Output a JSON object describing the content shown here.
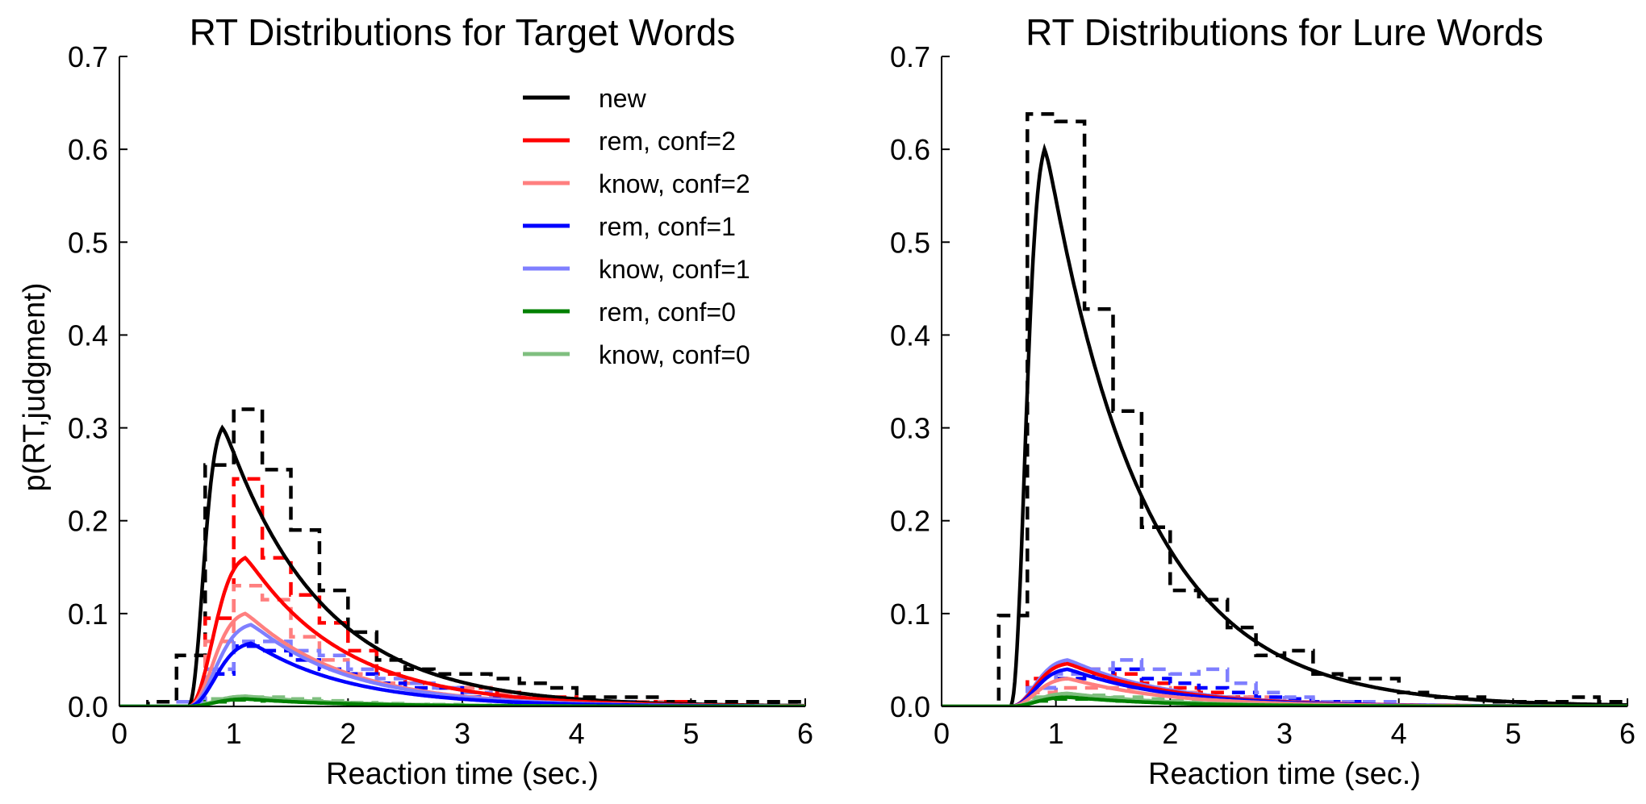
{
  "chart_data": [
    {
      "type": "line",
      "title": "RT Distributions for Target Words",
      "xlabel": "Reaction time (sec.)",
      "ylabel": "p(RT,judgment)",
      "xlim": [
        0,
        6
      ],
      "ylim": [
        0,
        0.7
      ],
      "xticks": [
        "0",
        "1",
        "2",
        "3",
        "4",
        "5",
        "6"
      ],
      "yticks": [
        "0.0",
        "0.1",
        "0.2",
        "0.3",
        "0.4",
        "0.5",
        "0.6",
        "0.7"
      ],
      "grid": false,
      "legend": "top-right",
      "legend_entries": [
        {
          "label": "new",
          "color": "#000000"
        },
        {
          "label": "rem, conf=2",
          "color": "#ff0000"
        },
        {
          "label": "know, conf=2",
          "color": "#ff7f7f"
        },
        {
          "label": "rem, conf=1",
          "color": "#0000ff"
        },
        {
          "label": "know, conf=1",
          "color": "#7f7fff"
        },
        {
          "label": "rem, conf=0",
          "color": "#008000"
        },
        {
          "label": "know, conf=0",
          "color": "#7fbf7f"
        }
      ],
      "model_series": [
        {
          "color": "#000000",
          "peak_x": 0.9,
          "peak_y": 0.3
        },
        {
          "color": "#ff0000",
          "peak_x": 1.1,
          "peak_y": 0.16
        },
        {
          "color": "#ff7f7f",
          "peak_x": 1.1,
          "peak_y": 0.1
        },
        {
          "color": "#7f7fff",
          "peak_x": 1.15,
          "peak_y": 0.088
        },
        {
          "color": "#0000ff",
          "peak_x": 1.15,
          "peak_y": 0.068
        },
        {
          "color": "#7fbf7f",
          "peak_x": 1.1,
          "peak_y": 0.011
        },
        {
          "color": "#008000",
          "peak_x": 1.1,
          "peak_y": 0.008
        }
      ],
      "observed_series": [
        {
          "color": "#000000",
          "bin_edges": [
            0,
            0.25,
            0.5,
            0.75,
            1,
            1.25,
            1.5,
            1.75,
            2,
            2.25,
            2.5,
            2.75,
            3,
            3.25,
            3.5,
            3.75,
            4,
            4.25,
            4.5,
            4.75,
            5,
            5.25,
            5.5,
            5.75,
            6
          ],
          "values": [
            0.0,
            0.005,
            0.055,
            0.26,
            0.32,
            0.255,
            0.19,
            0.125,
            0.08,
            0.05,
            0.04,
            0.035,
            0.035,
            0.03,
            0.025,
            0.02,
            0.01,
            0.01,
            0.01,
            0.005,
            0.005,
            0.005,
            0.005,
            0.005
          ]
        },
        {
          "color": "#ff0000",
          "bin_edges": [
            0.5,
            0.75,
            1,
            1.25,
            1.5,
            1.75,
            2,
            2.25,
            2.5,
            2.75,
            3,
            3.25,
            3.5,
            3.75,
            4,
            4.25,
            4.5,
            4.75,
            5,
            5.25,
            5.5,
            5.75,
            6
          ],
          "values": [
            0.005,
            0.095,
            0.245,
            0.16,
            0.12,
            0.09,
            0.06,
            0.035,
            0.025,
            0.02,
            0.02,
            0.015,
            0.01,
            0.01,
            0.005,
            0.005,
            0.005,
            0.005,
            0.0,
            0.0,
            0.0,
            0.0
          ]
        },
        {
          "color": "#ff7f7f",
          "bin_edges": [
            0.5,
            0.75,
            1,
            1.25,
            1.5,
            1.75,
            2,
            2.25,
            2.5,
            2.75,
            3,
            3.25,
            3.5,
            3.75,
            4,
            4.25,
            4.5,
            4.75,
            5,
            5.25,
            5.5,
            5.75,
            6
          ],
          "values": [
            0.005,
            0.07,
            0.13,
            0.115,
            0.075,
            0.05,
            0.035,
            0.025,
            0.025,
            0.02,
            0.02,
            0.015,
            0.01,
            0.005,
            0.005,
            0.005,
            0.005,
            0.0,
            0.0,
            0.0,
            0.0,
            0.0
          ]
        },
        {
          "color": "#0000ff",
          "bin_edges": [
            0.5,
            0.75,
            1,
            1.25,
            1.5,
            1.75,
            2,
            2.25,
            2.5,
            2.75,
            3,
            3.25,
            3.5,
            3.75,
            4,
            4.25,
            4.5,
            4.75,
            5,
            5.25,
            5.5,
            5.75,
            6
          ],
          "values": [
            0.005,
            0.035,
            0.065,
            0.06,
            0.05,
            0.04,
            0.035,
            0.025,
            0.02,
            0.02,
            0.01,
            0.01,
            0.005,
            0.005,
            0.005,
            0.005,
            0.0,
            0.0,
            0.0,
            0.0,
            0.0,
            0.0
          ]
        },
        {
          "color": "#7f7fff",
          "bin_edges": [
            0.5,
            0.75,
            1,
            1.25,
            1.5,
            1.75,
            2,
            2.25,
            2.5,
            2.75,
            3,
            3.25,
            3.5,
            3.75,
            4,
            4.25,
            4.5,
            4.75,
            5,
            5.25,
            5.5,
            5.75,
            6
          ],
          "values": [
            0.005,
            0.04,
            0.07,
            0.07,
            0.06,
            0.055,
            0.04,
            0.03,
            0.025,
            0.02,
            0.015,
            0.01,
            0.005,
            0.005,
            0.005,
            0.005,
            0.0,
            0.0,
            0.0,
            0.0,
            0.0,
            0.0
          ]
        },
        {
          "color": "#008000",
          "bin_edges": [
            0.5,
            0.75,
            1,
            1.25,
            1.5,
            1.75,
            2,
            2.25,
            2.5,
            2.75,
            3,
            3.25,
            3.5,
            3.75,
            4,
            4.25,
            4.5,
            4.75,
            5,
            5.25,
            5.5,
            5.75,
            6
          ],
          "values": [
            0.0,
            0.005,
            0.007,
            0.006,
            0.005,
            0.004,
            0.003,
            0.002,
            0.002,
            0.001,
            0.001,
            0.001,
            0.001,
            0.0,
            0.0,
            0.0,
            0.0,
            0.0,
            0.0,
            0.0,
            0.0,
            0.0
          ]
        },
        {
          "color": "#7fbf7f",
          "bin_edges": [
            0.5,
            0.75,
            1,
            1.25,
            1.5,
            1.75,
            2,
            2.25,
            2.5,
            2.75,
            3,
            3.25,
            3.5,
            3.75,
            4,
            4.25,
            4.5,
            4.75,
            5,
            5.25,
            5.5,
            5.75,
            6
          ],
          "values": [
            0.0,
            0.008,
            0.01,
            0.01,
            0.008,
            0.006,
            0.004,
            0.003,
            0.002,
            0.002,
            0.001,
            0.001,
            0.001,
            0.0,
            0.0,
            0.0,
            0.0,
            0.0,
            0.0,
            0.0,
            0.0,
            0.0
          ]
        }
      ]
    },
    {
      "type": "line",
      "title": "RT Distributions for Lure Words",
      "xlabel": "Reaction time (sec.)",
      "ylabel": "",
      "xlim": [
        0,
        6
      ],
      "ylim": [
        0,
        0.7
      ],
      "xticks": [
        "0",
        "1",
        "2",
        "3",
        "4",
        "5",
        "6"
      ],
      "yticks": [
        "0.0",
        "0.1",
        "0.2",
        "0.3",
        "0.4",
        "0.5",
        "0.6",
        "0.7"
      ],
      "grid": false,
      "model_series": [
        {
          "color": "#000000",
          "peak_x": 0.9,
          "peak_y": 0.6
        },
        {
          "color": "#7f7fff",
          "peak_x": 1.1,
          "peak_y": 0.05
        },
        {
          "color": "#ff0000",
          "peak_x": 1.1,
          "peak_y": 0.046
        },
        {
          "color": "#0000ff",
          "peak_x": 1.1,
          "peak_y": 0.04
        },
        {
          "color": "#ff7f7f",
          "peak_x": 1.1,
          "peak_y": 0.03
        },
        {
          "color": "#7fbf7f",
          "peak_x": 1.1,
          "peak_y": 0.014
        },
        {
          "color": "#008000",
          "peak_x": 1.1,
          "peak_y": 0.01
        }
      ],
      "observed_series": [
        {
          "color": "#000000",
          "bin_edges": [
            0,
            0.25,
            0.5,
            0.75,
            1,
            1.25,
            1.5,
            1.75,
            2,
            2.25,
            2.5,
            2.75,
            3,
            3.25,
            3.5,
            3.75,
            4,
            4.25,
            4.5,
            4.75,
            5,
            5.25,
            5.5,
            5.75,
            6
          ],
          "values": [
            0.0,
            0.0,
            0.098,
            0.638,
            0.63,
            0.428,
            0.318,
            0.193,
            0.125,
            0.115,
            0.085,
            0.055,
            0.06,
            0.035,
            0.03,
            0.03,
            0.015,
            0.01,
            0.01,
            0.005,
            0.005,
            0.005,
            0.01,
            0.005
          ]
        },
        {
          "color": "#ff0000",
          "bin_edges": [
            0.5,
            0.75,
            1,
            1.25,
            1.5,
            1.75,
            2,
            2.25,
            2.5,
            2.75,
            3,
            3.25,
            3.5,
            3.75,
            4,
            4.25,
            4.5,
            4.75,
            5,
            5.25,
            5.5,
            5.75,
            6
          ],
          "values": [
            0.0,
            0.03,
            0.035,
            0.04,
            0.035,
            0.025,
            0.02,
            0.015,
            0.01,
            0.005,
            0.005,
            0.005,
            0.005,
            0.0,
            0.0,
            0.0,
            0.0,
            0.0,
            0.0,
            0.0,
            0.0,
            0.0
          ]
        },
        {
          "color": "#ff7f7f",
          "bin_edges": [
            0.5,
            0.75,
            1,
            1.25,
            1.5,
            1.75,
            2,
            2.25,
            2.5,
            2.75,
            3,
            3.25,
            3.5,
            3.75,
            4,
            4.25,
            4.5,
            4.75,
            5,
            5.25,
            5.5,
            5.75,
            6
          ],
          "values": [
            0.0,
            0.015,
            0.02,
            0.02,
            0.02,
            0.02,
            0.015,
            0.01,
            0.01,
            0.01,
            0.005,
            0.005,
            0.005,
            0.0,
            0.0,
            0.0,
            0.0,
            0.0,
            0.0,
            0.0,
            0.0,
            0.0
          ]
        },
        {
          "color": "#0000ff",
          "bin_edges": [
            0.5,
            0.75,
            1,
            1.25,
            1.5,
            1.75,
            2,
            2.25,
            2.5,
            2.75,
            3,
            3.25,
            3.5,
            3.75,
            4,
            4.25,
            4.5,
            4.75,
            5,
            5.25,
            5.5,
            5.75,
            6
          ],
          "values": [
            0.0,
            0.02,
            0.03,
            0.035,
            0.04,
            0.03,
            0.025,
            0.02,
            0.015,
            0.01,
            0.008,
            0.005,
            0.005,
            0.0,
            0.0,
            0.0,
            0.0,
            0.0,
            0.0,
            0.0,
            0.0,
            0.0
          ]
        },
        {
          "color": "#7f7fff",
          "bin_edges": [
            0.5,
            0.75,
            1,
            1.25,
            1.5,
            1.75,
            2,
            2.25,
            2.5,
            2.75,
            3,
            3.25,
            3.5,
            3.75,
            4,
            4.25,
            4.5,
            4.75,
            5,
            5.25,
            5.5,
            5.75,
            6
          ],
          "values": [
            0.0,
            0.02,
            0.035,
            0.04,
            0.05,
            0.04,
            0.035,
            0.04,
            0.025,
            0.015,
            0.01,
            0.005,
            0.005,
            0.005,
            0.0,
            0.0,
            0.0,
            0.0,
            0.0,
            0.0,
            0.0,
            0.0
          ]
        },
        {
          "color": "#008000",
          "bin_edges": [
            0.5,
            0.75,
            1,
            1.25,
            1.5,
            1.75,
            2,
            2.25,
            2.5,
            2.75,
            3,
            3.25,
            3.5,
            3.75,
            4,
            4.25,
            4.5,
            4.75,
            5,
            5.25,
            5.5,
            5.75,
            6
          ],
          "values": [
            0.0,
            0.006,
            0.008,
            0.008,
            0.006,
            0.005,
            0.004,
            0.003,
            0.002,
            0.001,
            0.001,
            0.001,
            0.0,
            0.0,
            0.0,
            0.0,
            0.0,
            0.0,
            0.0,
            0.0,
            0.0,
            0.0
          ]
        },
        {
          "color": "#7fbf7f",
          "bin_edges": [
            0.5,
            0.75,
            1,
            1.25,
            1.5,
            1.75,
            2,
            2.25,
            2.5,
            2.75,
            3,
            3.25,
            3.5,
            3.75,
            4,
            4.25,
            4.5,
            4.75,
            5,
            5.25,
            5.5,
            5.75,
            6
          ],
          "values": [
            0.0,
            0.01,
            0.012,
            0.012,
            0.01,
            0.008,
            0.006,
            0.004,
            0.003,
            0.002,
            0.001,
            0.001,
            0.0,
            0.0,
            0.0,
            0.0,
            0.0,
            0.0,
            0.0,
            0.0,
            0.0,
            0.0
          ]
        }
      ]
    }
  ]
}
